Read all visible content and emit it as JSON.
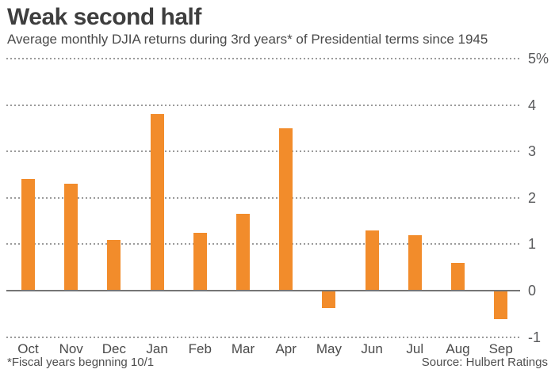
{
  "header": {
    "title": "Weak second half",
    "subtitle": "Average monthly DJIA returns during 3rd years* of Presidential terms since 1945"
  },
  "chart_data": {
    "type": "bar",
    "title": "Weak second half",
    "subtitle": "Average monthly DJIA returns during 3rd years* of Presidential terms since 1945",
    "categories": [
      "Oct",
      "Nov",
      "Dec",
      "Jan",
      "Feb",
      "Mar",
      "Apr",
      "May",
      "Jun",
      "Jul",
      "Aug",
      "Sep"
    ],
    "values": [
      2.4,
      2.3,
      1.1,
      3.8,
      1.25,
      1.65,
      3.5,
      -0.35,
      1.3,
      1.2,
      0.6,
      -0.6
    ],
    "xlabel": "",
    "ylabel": "",
    "ylim": [
      -1,
      5
    ],
    "yticks": [
      {
        "value": 5,
        "label": "5%"
      },
      {
        "value": 4,
        "label": "4"
      },
      {
        "value": 3,
        "label": "3"
      },
      {
        "value": 2,
        "label": "2"
      },
      {
        "value": 1,
        "label": "1"
      },
      {
        "value": 0,
        "label": "0"
      },
      {
        "value": -1,
        "label": "-1"
      }
    ],
    "grid": "horizontal-dotted",
    "legend": "none",
    "bar_color": "#F28C2B"
  },
  "footer": {
    "footnote": "*Fiscal years begnning 10/1",
    "source": "Source: Hulbert Ratings"
  },
  "colors": {
    "bar_orange": "#F28C2B",
    "title_text": "#3E3E3E",
    "subtitle_text": "#4A4A4A",
    "tick_text": "#58595B",
    "gridline_gray": "#9B9B9B",
    "zero_line_gray": "#757575",
    "footer_text": "#4F4F4F",
    "background": "#FFFFFF"
  }
}
